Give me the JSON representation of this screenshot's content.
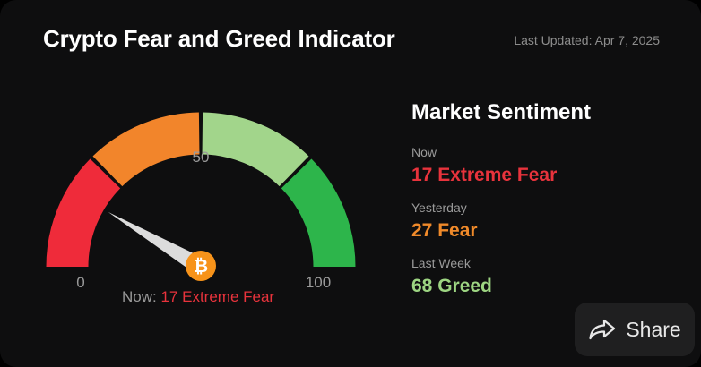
{
  "header": {
    "title": "Crypto Fear and Greed Indicator",
    "last_updated": "Last Updated: Apr 7, 2025"
  },
  "gauge": {
    "value": 17,
    "min": 0,
    "max": 100,
    "min_label": "0",
    "mid_label": "50",
    "max_label": "100",
    "segment_colors": [
      "#ef2b3a",
      "#f2852b",
      "#a2d58b",
      "#2db54b"
    ],
    "needle_color": "#dcdcdc",
    "coin_color": "#f7931a",
    "coin_symbol": "₿",
    "caption_prefix": "Now:",
    "caption_value": "17 Extreme Fear"
  },
  "sentiment": {
    "title": "Market Sentiment",
    "rows": [
      {
        "label": "Now",
        "value": "17 Extreme Fear",
        "color": "#e8333c"
      },
      {
        "label": "Yesterday",
        "value": "27 Fear",
        "color": "#f08a2a"
      },
      {
        "label": "Last Week",
        "value": "68 Greed",
        "color": "#9dd582"
      }
    ]
  },
  "share": {
    "label": "Share",
    "icon": "share-arrow-icon"
  }
}
